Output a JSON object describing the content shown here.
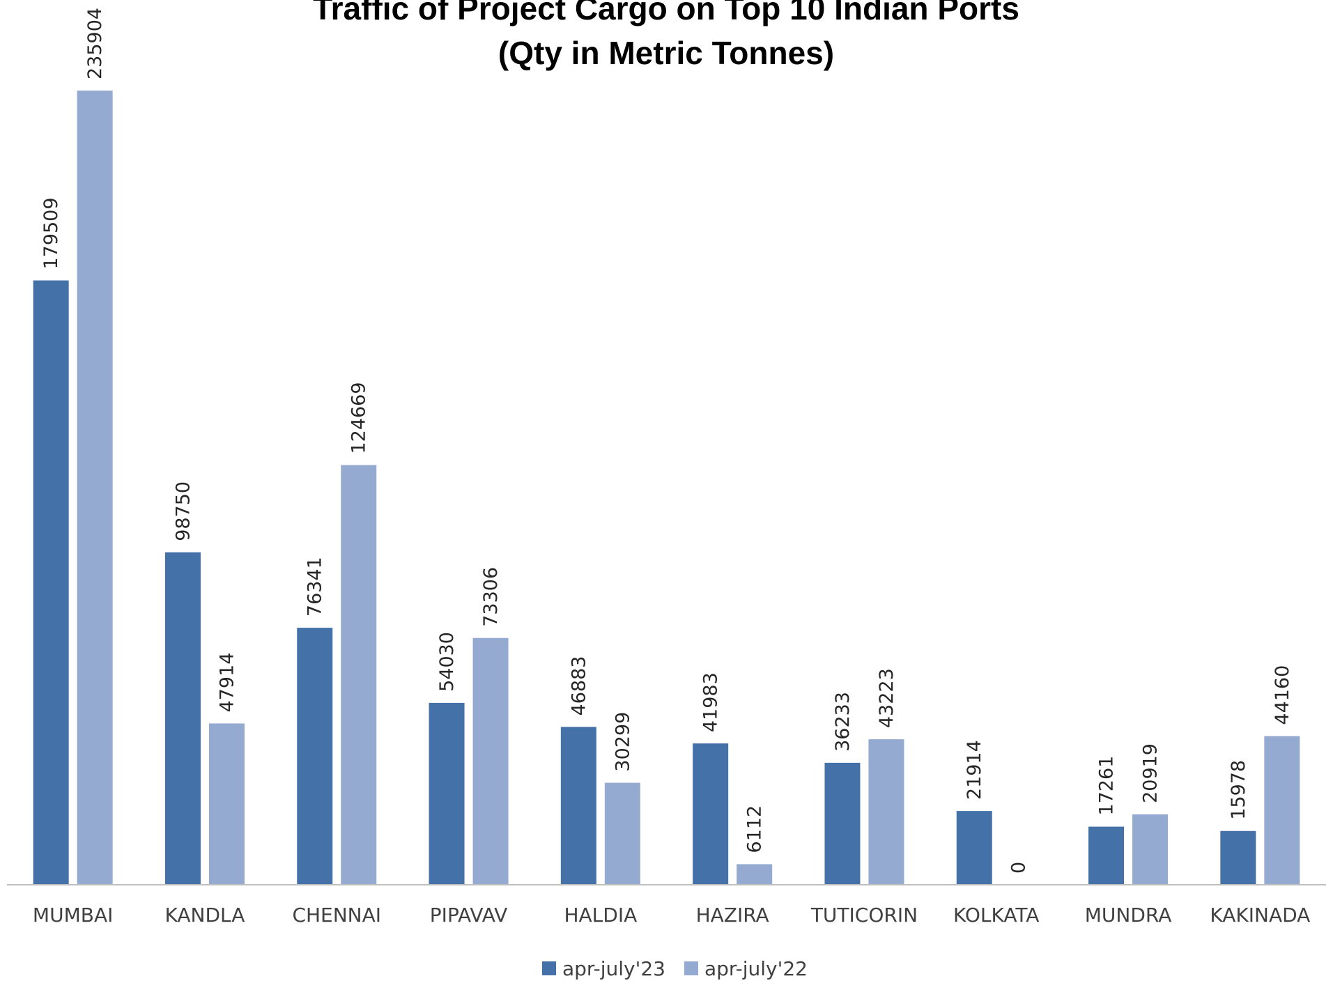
{
  "chart_data": {
    "type": "bar",
    "title": "Traffic of Project Cargo on Top 10 Indian Ports",
    "subtitle": "(Qty in Metric Tonnes)",
    "categories": [
      "MUMBAI",
      "KANDLA",
      "CHENNAI",
      "PIPAVAV",
      "HALDIA",
      "HAZIRA",
      "TUTICORIN",
      "KOLKATA",
      "MUNDRA",
      "KAKINADA"
    ],
    "series": [
      {
        "name": "apr-july'23",
        "color": "#4472A8",
        "values": [
          179509,
          98750,
          76341,
          54030,
          46883,
          41983,
          36233,
          21914,
          17261,
          15978
        ]
      },
      {
        "name": "apr-july'22",
        "color": "#95AAD1",
        "values": [
          235904,
          47914,
          124669,
          73306,
          30299,
          6112,
          43223,
          0,
          20919,
          44160
        ]
      }
    ],
    "ylim": [
      0,
      235904
    ],
    "data_labels": true,
    "data_label_orientation": "vertical",
    "grid": false,
    "legend_position": "bottom",
    "axis_color": "#BFBFBF"
  }
}
